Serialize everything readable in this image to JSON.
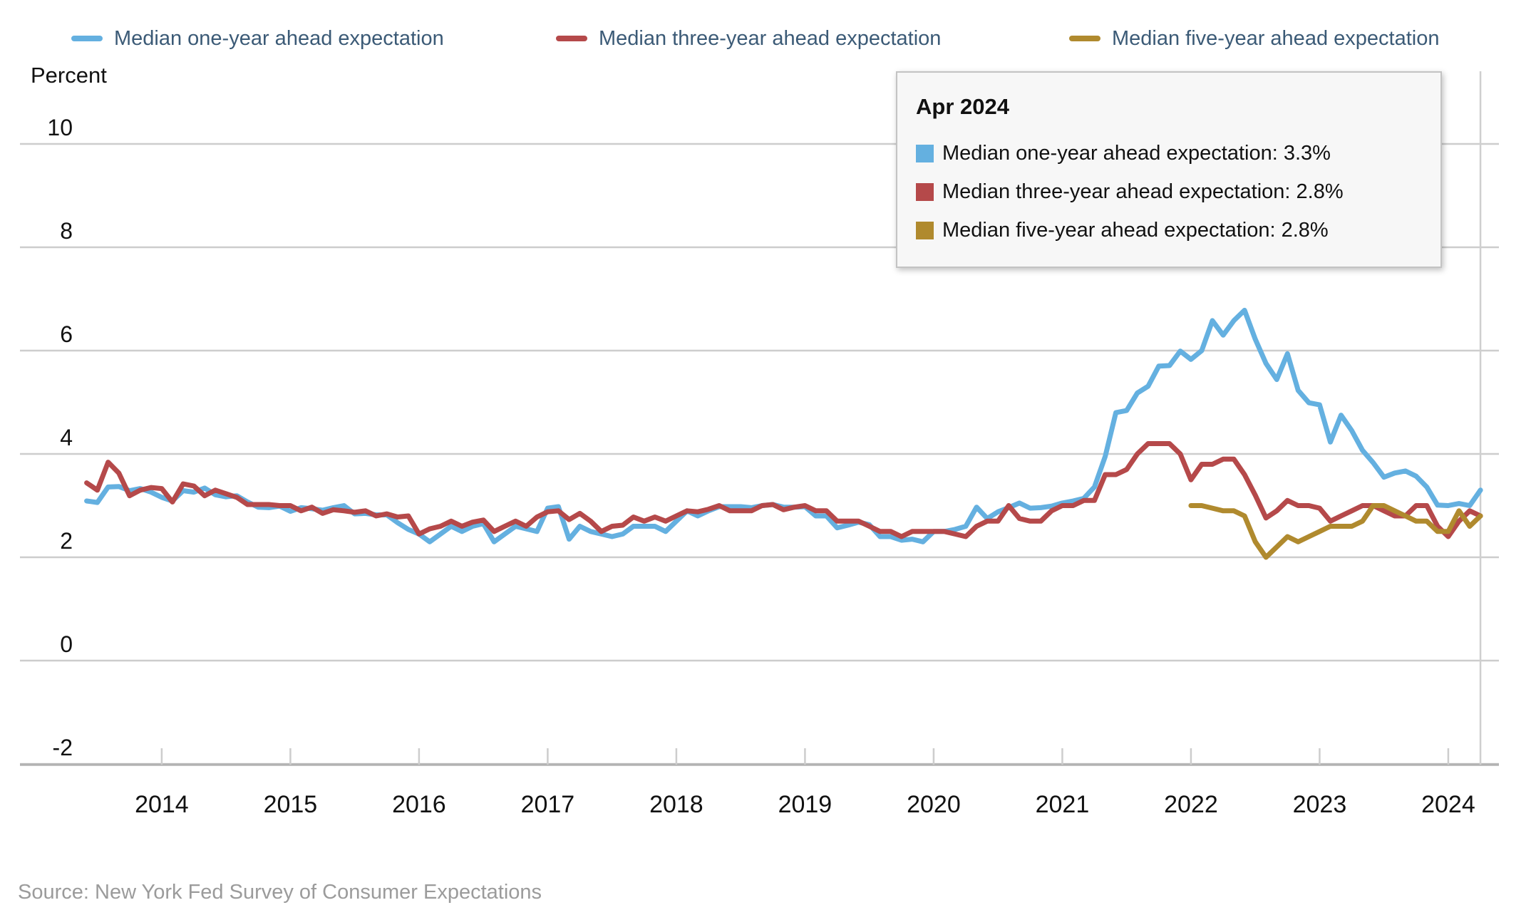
{
  "colors": {
    "one_year": "#64b0e0",
    "three_year": "#b5494a",
    "five_year": "#b08a2e",
    "legend_text": "#3b5a76",
    "grid_line": "#cdcdcd",
    "axis_line": "#b3b3b3",
    "hover_line": "#cfcfcf",
    "tick_label": "#111111",
    "source_text": "#9b9b9b",
    "tooltip_bg": "#f7f7f7",
    "tooltip_border": "#c3c3c3"
  },
  "legend": {
    "items": [
      {
        "label": "Median one-year ahead expectation",
        "color_key": "one_year"
      },
      {
        "label": "Median three-year ahead expectation",
        "color_key": "three_year"
      },
      {
        "label": "Median five-year ahead expectation",
        "color_key": "five_year"
      }
    ]
  },
  "y_axis_caption": "Percent",
  "tooltip": {
    "title": "Apr 2024",
    "rows": [
      {
        "text": "Median one-year ahead expectation: 3.3%",
        "color_key": "one_year"
      },
      {
        "text": "Median three-year ahead expectation: 2.8%",
        "color_key": "three_year"
      },
      {
        "text": "Median five-year ahead expectation: 2.8%",
        "color_key": "five_year"
      }
    ]
  },
  "source": "Source: New York Fed Survey of Consumer Expectations",
  "chart_data": {
    "type": "line",
    "frequency": "monthly",
    "x_start": "2013-06",
    "x_end": "2024-04",
    "hover_month": "Apr 2024",
    "hover_month_index": 130,
    "ylabel": "Percent",
    "ylim": [
      -2,
      10
    ],
    "y_ticks": [
      10,
      8,
      6,
      4,
      2,
      0,
      -2
    ],
    "x_ticks": [
      2014,
      2015,
      2016,
      2017,
      2018,
      2019,
      2020,
      2021,
      2022,
      2023,
      2024
    ],
    "grid": true,
    "legend_position": "top",
    "series": [
      {
        "name": "Median one-year ahead expectation",
        "color_key": "one_year",
        "start_month_index": 0,
        "values": [
          3.09,
          3.06,
          3.36,
          3.37,
          3.29,
          3.33,
          3.26,
          3.16,
          3.09,
          3.29,
          3.26,
          3.34,
          3.21,
          3.17,
          3.19,
          3.07,
          2.97,
          2.96,
          2.99,
          2.89,
          2.96,
          2.94,
          2.91,
          2.96,
          3.0,
          2.84,
          2.85,
          2.82,
          2.82,
          2.67,
          2.54,
          2.45,
          2.3,
          2.45,
          2.6,
          2.5,
          2.6,
          2.65,
          2.3,
          2.45,
          2.6,
          2.55,
          2.5,
          2.95,
          2.98,
          2.35,
          2.6,
          2.5,
          2.45,
          2.4,
          2.45,
          2.6,
          2.6,
          2.6,
          2.5,
          2.7,
          2.9,
          2.8,
          2.9,
          2.98,
          2.98,
          2.98,
          2.96,
          3.0,
          3.02,
          2.97,
          2.97,
          2.98,
          2.8,
          2.8,
          2.57,
          2.62,
          2.68,
          2.63,
          2.4,
          2.4,
          2.33,
          2.35,
          2.3,
          2.5,
          2.5,
          2.54,
          2.6,
          2.97,
          2.75,
          2.88,
          2.96,
          3.05,
          2.95,
          2.96,
          2.99,
          3.05,
          3.09,
          3.14,
          3.36,
          3.95,
          4.8,
          4.84,
          5.18,
          5.31,
          5.7,
          5.71,
          5.99,
          5.83,
          6.0,
          6.58,
          6.3,
          6.58,
          6.78,
          6.22,
          5.75,
          5.44,
          5.94,
          5.23,
          4.99,
          4.95,
          4.23,
          4.75,
          4.45,
          4.07,
          3.83,
          3.55,
          3.63,
          3.67,
          3.57,
          3.36,
          3.01,
          3.0,
          3.04,
          3.0,
          3.3
        ]
      },
      {
        "name": "Median three-year ahead expectation",
        "color_key": "three_year",
        "start_month_index": 0,
        "values": [
          3.44,
          3.3,
          3.84,
          3.63,
          3.19,
          3.3,
          3.35,
          3.33,
          3.07,
          3.42,
          3.38,
          3.19,
          3.3,
          3.23,
          3.16,
          3.02,
          3.02,
          3.02,
          3.0,
          3.0,
          2.9,
          2.97,
          2.85,
          2.92,
          2.9,
          2.87,
          2.9,
          2.8,
          2.84,
          2.78,
          2.8,
          2.45,
          2.55,
          2.6,
          2.7,
          2.6,
          2.68,
          2.72,
          2.5,
          2.6,
          2.7,
          2.6,
          2.78,
          2.88,
          2.9,
          2.73,
          2.85,
          2.7,
          2.5,
          2.6,
          2.62,
          2.78,
          2.7,
          2.78,
          2.7,
          2.8,
          2.9,
          2.88,
          2.93,
          3.0,
          2.9,
          2.9,
          2.9,
          3.0,
          3.02,
          2.92,
          2.97,
          3.0,
          2.9,
          2.9,
          2.7,
          2.7,
          2.7,
          2.6,
          2.5,
          2.5,
          2.4,
          2.5,
          2.5,
          2.5,
          2.5,
          2.45,
          2.4,
          2.6,
          2.7,
          2.7,
          3.0,
          2.75,
          2.7,
          2.7,
          2.9,
          3.0,
          3.0,
          3.1,
          3.1,
          3.6,
          3.6,
          3.7,
          4.0,
          4.2,
          4.2,
          4.2,
          4.0,
          3.5,
          3.8,
          3.8,
          3.9,
          3.9,
          3.6,
          3.2,
          2.76,
          2.9,
          3.1,
          3.0,
          3.0,
          2.95,
          2.7,
          2.8,
          2.9,
          3.0,
          3.0,
          2.9,
          2.8,
          2.8,
          3.0,
          3.0,
          2.6,
          2.4,
          2.7,
          2.9,
          2.8
        ]
      },
      {
        "name": "Median five-year ahead expectation",
        "color_key": "five_year",
        "start_month_index": 103,
        "values": [
          3.0,
          3.0,
          2.95,
          2.9,
          2.9,
          2.8,
          2.3,
          2.0,
          2.2,
          2.4,
          2.3,
          2.4,
          2.5,
          2.6,
          2.6,
          2.6,
          2.7,
          3.0,
          3.0,
          2.9,
          2.8,
          2.7,
          2.7,
          2.5,
          2.5,
          2.9,
          2.6,
          2.8
        ]
      }
    ]
  }
}
